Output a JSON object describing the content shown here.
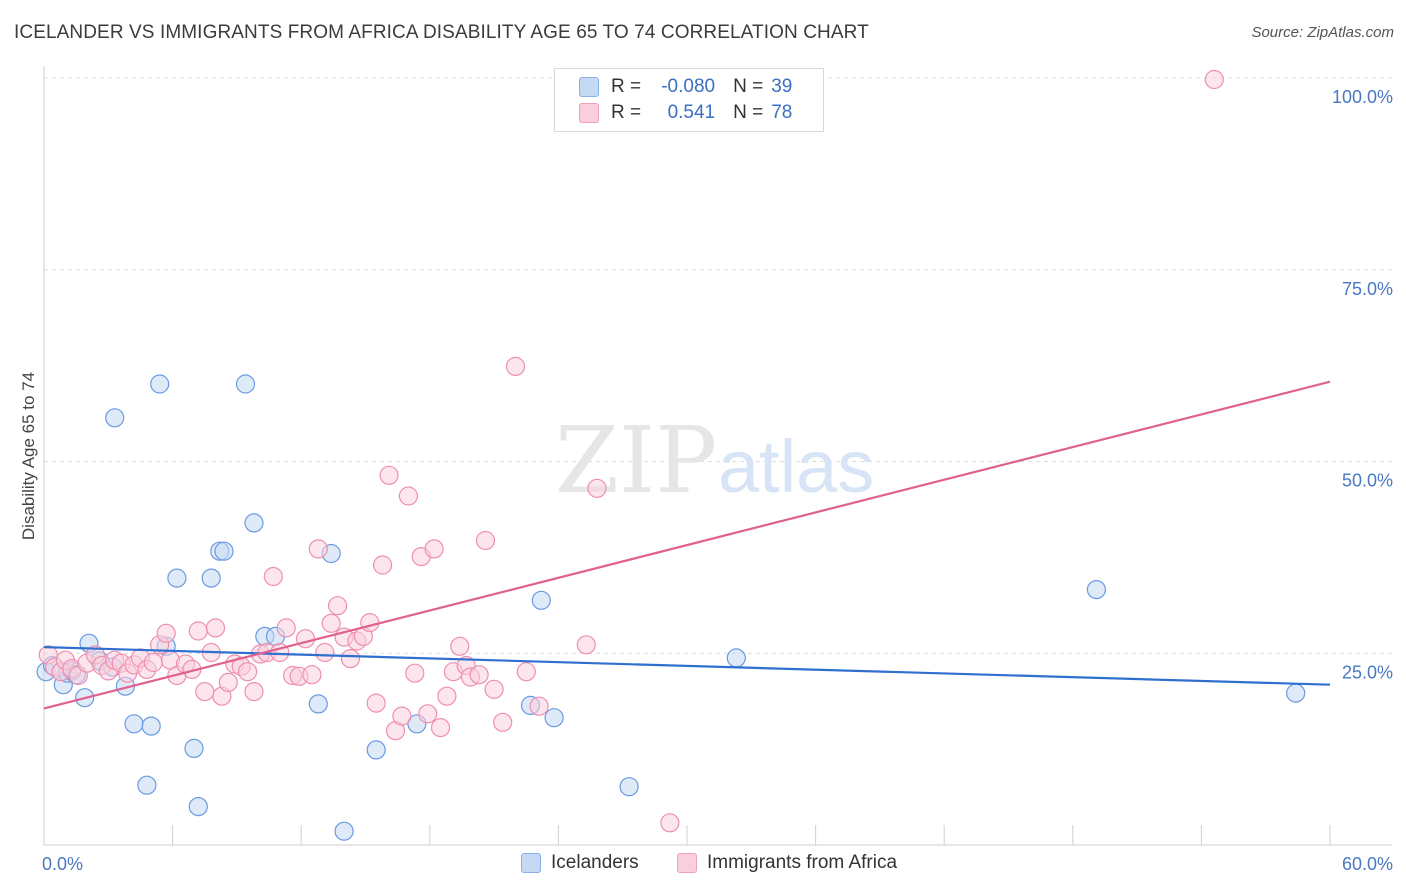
{
  "title": "ICELANDER VS IMMIGRANTS FROM AFRICA DISABILITY AGE 65 TO 74 CORRELATION CHART",
  "source": "Source: ZipAtlas.com",
  "watermark": {
    "zip": "ZIP",
    "atlas": "atlas"
  },
  "legend_stats": [
    {
      "r_label": "R =",
      "r_value": "-0.080",
      "n_label": "N =",
      "n_value": "39",
      "color": "#8ab0e8",
      "fill": "#c5d8f4"
    },
    {
      "r_label": "R =",
      "r_value": "0.541",
      "n_label": "N =",
      "n_value": "78",
      "color": "#f0a0ba",
      "fill": "#f9cfdc"
    }
  ],
  "chart_data": {
    "type": "scatter",
    "title": "ICELANDER VS IMMIGRANTS FROM AFRICA DISABILITY AGE 65 TO 74 CORRELATION CHART",
    "xlabel": "",
    "ylabel": "Disability Age 65 to 74",
    "xlim": [
      0,
      60
    ],
    "ylim": [
      0,
      100
    ],
    "x_tick_labels": [
      "0.0%",
      "60.0%"
    ],
    "y_ticks": [
      25,
      50,
      75,
      100
    ],
    "y_tick_labels": [
      "25.0%",
      "50.0%",
      "75.0%",
      "100.0%"
    ],
    "grid": true,
    "legend_position": "bottom",
    "series": [
      {
        "name": "Icelanders",
        "color": "#6a9ae0",
        "fill": "#c5d8f4",
        "trend": {
          "x": [
            0,
            60
          ],
          "y": [
            25.8,
            20.9
          ],
          "color": "#2f6fd0"
        },
        "x": [
          0.1,
          0.4,
          0.9,
          1.1,
          1.3,
          1.5,
          1.9,
          2.1,
          2.6,
          3.2,
          3.8,
          3.3,
          4.2,
          4.8,
          5.4,
          5.7,
          5.0,
          6.2,
          7.0,
          7.2,
          7.8,
          8.2,
          8.4,
          9.4,
          9.8,
          10.3,
          10.8,
          12.8,
          13.4,
          14.0,
          15.5,
          17.4,
          22.7,
          23.2,
          23.8,
          27.3,
          32.3,
          49.1,
          58.4
        ],
        "y": [
          22.6,
          23.4,
          20.9,
          22.4,
          22.7,
          22.2,
          19.2,
          26.3,
          24.0,
          23.2,
          20.7,
          55.7,
          15.8,
          7.8,
          60.1,
          25.9,
          15.5,
          34.8,
          12.6,
          5.0,
          34.8,
          38.3,
          38.3,
          60.1,
          42.0,
          27.2,
          27.2,
          18.4,
          38.0,
          1.8,
          12.4,
          15.8,
          18.2,
          31.9,
          16.6,
          7.6,
          24.4,
          33.3,
          19.8
        ]
      },
      {
        "name": "Immigrants from Africa",
        "color": "#ee8fb0",
        "fill": "#f9cfdc",
        "trend": {
          "x": [
            0,
            60
          ],
          "y": [
            17.8,
            60.4
          ],
          "color": "#e0608e"
        },
        "x": [
          0.2,
          0.5,
          0.8,
          1.0,
          1.3,
          1.6,
          2.0,
          2.4,
          2.7,
          3.0,
          3.3,
          3.6,
          3.9,
          4.2,
          4.5,
          4.8,
          5.1,
          5.4,
          5.7,
          5.9,
          6.2,
          6.6,
          6.9,
          7.2,
          7.5,
          7.8,
          8.0,
          8.3,
          8.6,
          8.9,
          9.2,
          9.5,
          9.8,
          10.1,
          10.4,
          10.7,
          11.0,
          11.3,
          11.6,
          11.9,
          12.2,
          12.5,
          12.8,
          13.1,
          13.4,
          13.7,
          14.0,
          14.3,
          14.6,
          14.9,
          15.2,
          15.5,
          15.8,
          16.1,
          16.4,
          16.7,
          17.0,
          17.3,
          17.6,
          17.9,
          18.2,
          18.5,
          18.8,
          19.1,
          19.4,
          19.7,
          19.9,
          20.3,
          20.6,
          21.0,
          21.4,
          22.0,
          22.5,
          23.1,
          25.3,
          25.8,
          29.2,
          54.6
        ],
        "y": [
          24.8,
          23.2,
          22.6,
          24.1,
          23.0,
          22.1,
          23.7,
          24.8,
          23.4,
          22.7,
          24.1,
          23.7,
          22.4,
          23.5,
          24.4,
          22.9,
          23.8,
          26.1,
          27.6,
          24.1,
          22.1,
          23.6,
          22.9,
          27.9,
          20.0,
          25.1,
          28.3,
          19.4,
          21.2,
          23.6,
          23.3,
          22.6,
          20.0,
          24.9,
          25.1,
          35.0,
          25.1,
          28.3,
          22.1,
          22.0,
          26.9,
          22.2,
          38.6,
          25.1,
          28.9,
          31.2,
          27.1,
          24.3,
          26.6,
          27.2,
          29.0,
          18.5,
          36.5,
          48.2,
          14.9,
          16.8,
          45.5,
          22.4,
          37.6,
          17.1,
          38.6,
          15.3,
          19.4,
          22.6,
          25.9,
          23.4,
          21.9,
          22.2,
          39.7,
          20.3,
          16.0,
          62.4,
          22.6,
          18.1,
          26.1,
          46.5,
          2.9,
          99.8
        ]
      }
    ]
  },
  "bottom_legend": [
    {
      "label": "Icelanders",
      "color": "#8ab0e8",
      "fill": "#c5d8f4"
    },
    {
      "label": "Immigrants from Africa",
      "color": "#f0a0ba",
      "fill": "#f9cfdc"
    }
  ]
}
